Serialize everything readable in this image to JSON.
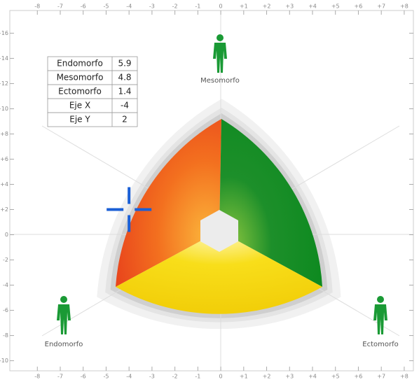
{
  "chart_data": {
    "type": "scatter",
    "xlim": [
      -9.2,
      8.4
    ],
    "ylim": [
      -10.8,
      17.8
    ],
    "xticks": [
      -8,
      -7,
      -6,
      -5,
      -4,
      -3,
      -2,
      -1,
      0,
      {
        "value": 1,
        "label": "+1"
      },
      {
        "value": 2,
        "label": "+2"
      },
      {
        "value": 3,
        "label": "+3"
      },
      {
        "value": 4,
        "label": "+4"
      },
      {
        "value": 5,
        "label": "+5"
      },
      {
        "value": 6,
        "label": "+6"
      },
      {
        "value": 7,
        "label": "+7"
      },
      {
        "value": 8,
        "label": "+8"
      }
    ],
    "yticks": [
      {
        "value": 16,
        "label": "+16"
      },
      {
        "value": 14,
        "label": "+14"
      },
      {
        "value": 12,
        "label": "+12"
      },
      {
        "value": 10,
        "label": "+10"
      },
      {
        "value": 8,
        "label": "+8"
      },
      {
        "value": 6,
        "label": "+6"
      },
      {
        "value": 4,
        "label": "+4"
      },
      {
        "value": 2,
        "label": "+2"
      },
      0,
      -2,
      -4,
      -6,
      -8,
      -10
    ],
    "series": [
      {
        "x": [
          -4
        ],
        "values": [
          2
        ],
        "color": "#1a5fd6"
      }
    ],
    "table": {
      "rows": [
        [
          "Endomorfo",
          5.9
        ],
        [
          "Mesomorfo",
          4.8
        ],
        [
          "Ectomorfo",
          1.4
        ],
        [
          "Eje X",
          -4
        ],
        [
          "Eje Y",
          2
        ]
      ]
    },
    "annotations": [
      "Mesomorfo",
      "Endomorfo",
      "Ectomorfo"
    ]
  }
}
